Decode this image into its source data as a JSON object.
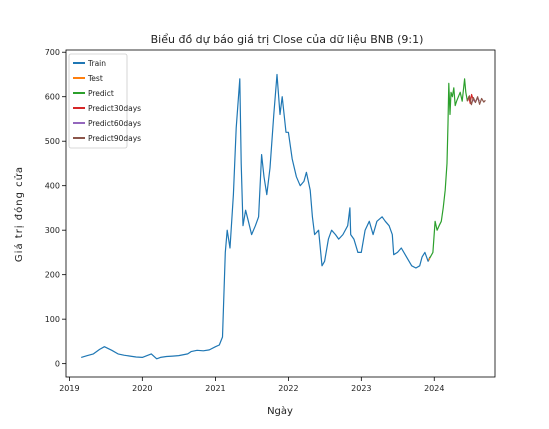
{
  "chart_data": {
    "type": "line",
    "title": "Biểu đồ dự báo giá trị Close của dữ liệu BNB (9:1)",
    "xlabel": "Ngày",
    "ylabel": "Giá trị đóng cửa",
    "xlim": [
      "2018-12-15",
      "2024-10-31"
    ],
    "ylim": [
      -30,
      705
    ],
    "x_ticks": [
      "2019",
      "2020",
      "2021",
      "2022",
      "2023",
      "2024"
    ],
    "y_ticks": [
      0,
      100,
      200,
      300,
      400,
      500,
      600,
      700
    ],
    "grid": false,
    "legend_position": "top-left",
    "colors": {
      "Train": "#1f77b4",
      "Test": "#ff7f0e",
      "Predict": "#2ca02c",
      "Predict30days": "#d62728",
      "Predict60days": "#9467bd",
      "Predict90days": "#8c564b"
    },
    "series": [
      {
        "name": "Train",
        "x": [
          "2019-03-01",
          "2019-04-01",
          "2019-05-01",
          "2019-06-01",
          "2019-06-25",
          "2019-08-01",
          "2019-09-01",
          "2019-10-01",
          "2019-11-01",
          "2019-12-01",
          "2020-01-01",
          "2020-02-15",
          "2020-03-13",
          "2020-04-01",
          "2020-05-01",
          "2020-06-01",
          "2020-07-01",
          "2020-08-15",
          "2020-09-01",
          "2020-10-01",
          "2020-11-01",
          "2020-12-01",
          "2021-01-01",
          "2021-01-20",
          "2021-02-05",
          "2021-02-19",
          "2021-03-01",
          "2021-03-15",
          "2021-04-01",
          "2021-04-15",
          "2021-05-03",
          "2021-05-10",
          "2021-05-19",
          "2021-06-01",
          "2021-06-15",
          "2021-07-01",
          "2021-07-20",
          "2021-08-05",
          "2021-08-20",
          "2021-09-01",
          "2021-09-15",
          "2021-10-01",
          "2021-10-20",
          "2021-11-05",
          "2021-11-20",
          "2021-12-01",
          "2021-12-20",
          "2022-01-01",
          "2022-01-20",
          "2022-02-10",
          "2022-03-01",
          "2022-03-20",
          "2022-04-01",
          "2022-04-20",
          "2022-05-01",
          "2022-05-12",
          "2022-06-01",
          "2022-06-18",
          "2022-07-01",
          "2022-07-20",
          "2022-08-05",
          "2022-08-25",
          "2022-09-10",
          "2022-10-01",
          "2022-10-25",
          "2022-11-05",
          "2022-11-09",
          "2022-11-25",
          "2022-12-15",
          "2023-01-01",
          "2023-01-20",
          "2023-02-10",
          "2023-03-01",
          "2023-03-20",
          "2023-04-15",
          "2023-05-01",
          "2023-05-20",
          "2023-06-05",
          "2023-06-12",
          "2023-07-01",
          "2023-07-20",
          "2023-08-15",
          "2023-09-10",
          "2023-10-01",
          "2023-10-20",
          "2023-11-01",
          "2023-11-15",
          "2023-12-01",
          "2023-12-10"
        ],
        "y": [
          14,
          18,
          22,
          32,
          38,
          30,
          22,
          19,
          17,
          15,
          14,
          22,
          11,
          14,
          16,
          17,
          18,
          22,
          27,
          30,
          29,
          31,
          38,
          42,
          60,
          250,
          300,
          260,
          380,
          530,
          640,
          450,
          310,
          345,
          320,
          290,
          310,
          330,
          470,
          420,
          380,
          440,
          560,
          650,
          560,
          600,
          520,
          520,
          460,
          420,
          400,
          410,
          430,
          390,
          330,
          290,
          300,
          220,
          230,
          280,
          300,
          290,
          280,
          290,
          310,
          350,
          290,
          280,
          250,
          250,
          300,
          320,
          290,
          320,
          330,
          320,
          310,
          290,
          245,
          250,
          260,
          240,
          220,
          215,
          220,
          240,
          250,
          230,
          240
        ]
      },
      {
        "name": "Test",
        "x": [
          "2023-12-05",
          "2023-12-10"
        ],
        "y": [
          232,
          238
        ]
      },
      {
        "name": "Predict",
        "x": [
          "2023-12-10",
          "2023-12-25",
          "2024-01-05",
          "2024-01-15",
          "2024-01-25",
          "2024-02-05",
          "2024-02-15",
          "2024-02-25",
          "2024-03-05",
          "2024-03-10",
          "2024-03-14",
          "2024-03-20",
          "2024-03-25",
          "2024-04-01",
          "2024-04-08",
          "2024-04-15",
          "2024-04-22",
          "2024-05-01",
          "2024-05-10",
          "2024-05-20",
          "2024-06-01",
          "2024-06-07",
          "2024-06-15"
        ],
        "y": [
          238,
          250,
          320,
          300,
          310,
          320,
          350,
          390,
          450,
          540,
          630,
          560,
          610,
          600,
          620,
          580,
          590,
          600,
          610,
          590,
          640,
          610,
          590
        ]
      },
      {
        "name": "Predict30days",
        "x": [
          "2024-06-15",
          "2024-06-22",
          "2024-06-29",
          "2024-07-06",
          "2024-07-15"
        ],
        "y": [
          590,
          600,
          585,
          605,
          592
        ]
      },
      {
        "name": "Predict60days",
        "x": [
          "2024-07-15",
          "2024-07-25",
          "2024-08-05",
          "2024-08-14"
        ],
        "y": [
          592,
          588,
          598,
          590
        ]
      },
      {
        "name": "Predict90days",
        "x": [
          "2024-06-15",
          "2024-06-25",
          "2024-07-05",
          "2024-07-15",
          "2024-07-25",
          "2024-08-05",
          "2024-08-15",
          "2024-08-25",
          "2024-09-05",
          "2024-09-13"
        ],
        "y": [
          590,
          602,
          582,
          598,
          587,
          600,
          583,
          596,
          588,
          592
        ]
      }
    ]
  }
}
